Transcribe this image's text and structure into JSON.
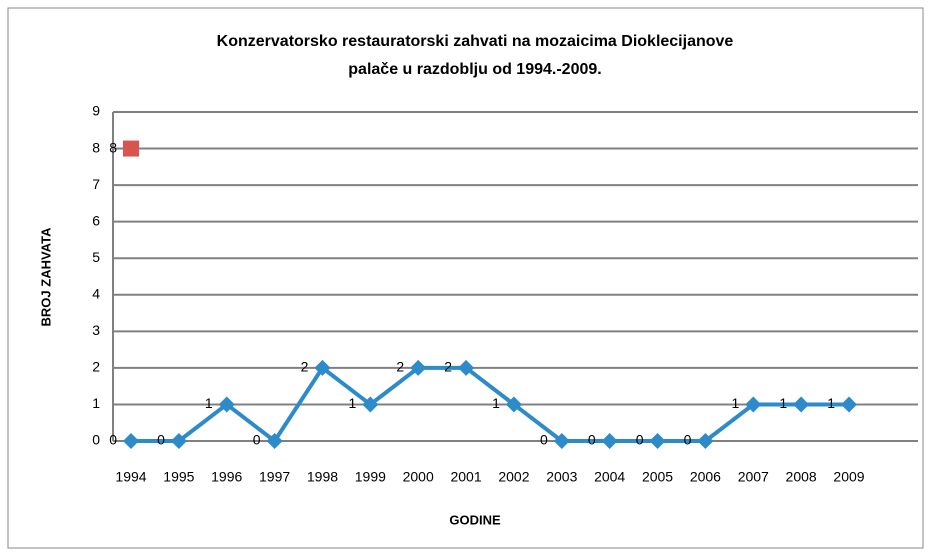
{
  "chart_data": {
    "type": "line",
    "title": [
      "Konzervatorsko restauratorski zahvati na mozaicima Dioklecijanove",
      "palače u razdoblju od 1994.-2009."
    ],
    "x_label": "GODINE",
    "y_label": "BROJ  ZAHVATA",
    "categories": [
      "1994",
      "1995",
      "1996",
      "1997",
      "1998",
      "1999",
      "2000",
      "2001",
      "2002",
      "2003",
      "2004",
      "2005",
      "2006",
      "2007",
      "2008",
      "2009"
    ],
    "series": [
      {
        "color": "#2e8bc9",
        "marker": "diamond",
        "values": [
          0,
          0,
          1,
          0,
          2,
          1,
          2,
          2,
          1,
          0,
          0,
          0,
          0,
          1,
          1,
          1
        ]
      },
      {
        "color": "#d9534f",
        "marker": "square",
        "values": [
          8,
          null,
          null,
          null,
          null,
          null,
          null,
          null,
          null,
          null,
          null,
          null,
          null,
          null,
          null,
          null
        ]
      }
    ],
    "ylim": [
      0,
      9
    ],
    "yticks": [
      0,
      1,
      2,
      3,
      4,
      5,
      6,
      7,
      8,
      9
    ],
    "grid": true
  }
}
